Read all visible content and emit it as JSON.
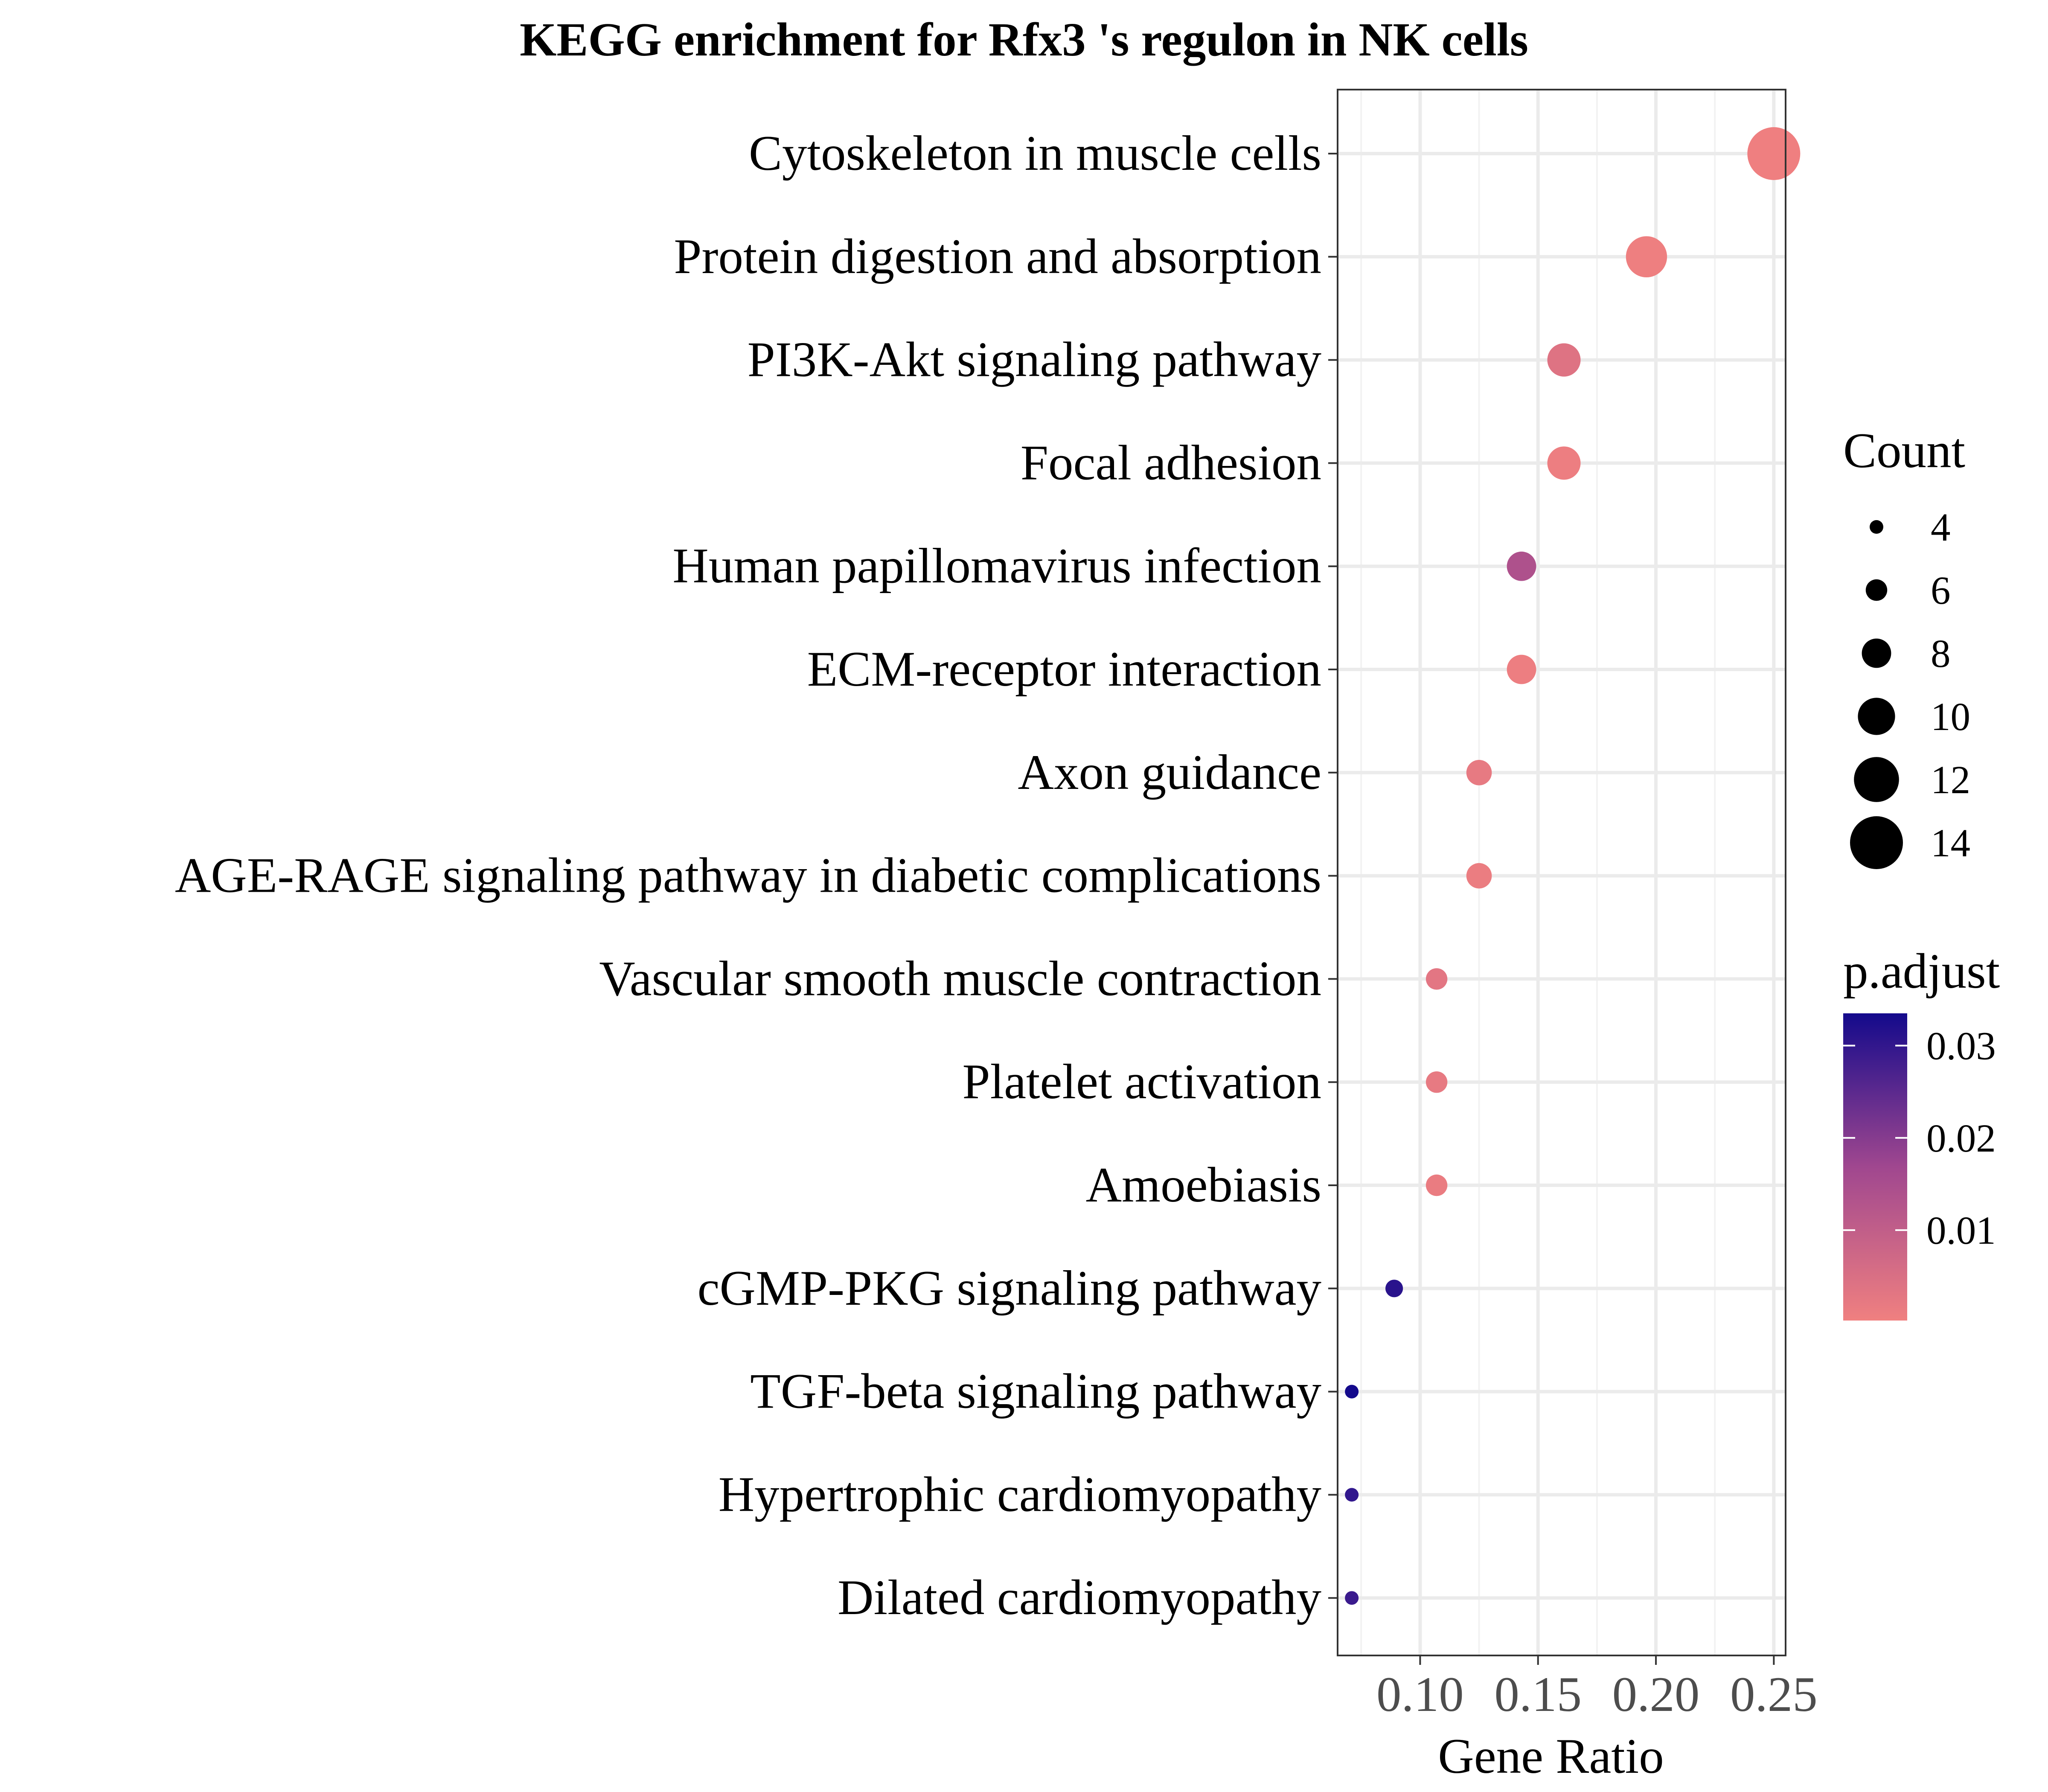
{
  "chart_data": {
    "type": "scatter",
    "title": "KEGG enrichment for Rfx3 's regulon in NK cells",
    "xlabel": "Gene Ratio",
    "ylabel": "",
    "xlim": [
      0.065,
      0.255
    ],
    "x_ticks": [
      0.1,
      0.15,
      0.2,
      0.25
    ],
    "x_tick_labels": [
      "0.10",
      "0.15",
      "0.20",
      "0.25"
    ],
    "grid": true,
    "categories": [
      "Cytoskeleton in muscle cells",
      "Protein digestion and absorption",
      "PI3K-Akt signaling pathway",
      "Focal adhesion",
      "Human papillomavirus infection",
      "ECM-receptor interaction",
      "Axon guidance",
      "AGE-RAGE signaling pathway in diabetic complications",
      "Vascular smooth muscle contraction",
      "Platelet activation",
      "Amoebiasis",
      "cGMP-PKG signaling pathway",
      "TGF-beta signaling pathway",
      "Hypertrophic cardiomyopathy",
      "Dilated cardiomyopathy"
    ],
    "gene_ratio": [
      0.25,
      0.196,
      0.161,
      0.161,
      0.143,
      0.143,
      0.125,
      0.125,
      0.107,
      0.107,
      0.107,
      0.089,
      0.071,
      0.071,
      0.071
    ],
    "count": [
      14,
      11,
      9,
      9,
      8,
      8,
      7,
      7,
      6,
      6,
      6,
      5,
      4,
      4,
      4
    ],
    "p_adjust": [
      0.0004,
      0.0006,
      0.004,
      0.0008,
      0.014,
      0.0008,
      0.002,
      0.0012,
      0.003,
      0.002,
      0.0015,
      0.031,
      0.034,
      0.03,
      0.029
    ],
    "size_legend": {
      "title": "Count",
      "values": [
        4,
        6,
        8,
        10,
        12,
        14
      ],
      "labels": [
        "4",
        "6",
        "8",
        "10",
        "12",
        "14"
      ]
    },
    "color_legend": {
      "title": "p.adjust",
      "min": 0.0002,
      "max": 0.0335,
      "ticks": [
        0.01,
        0.02,
        0.03
      ],
      "tick_labels": [
        "0.01",
        "0.02",
        "0.03"
      ],
      "low_color": "#F08080",
      "mid_color": "#A0478F",
      "high_color": "#140A8C"
    }
  }
}
